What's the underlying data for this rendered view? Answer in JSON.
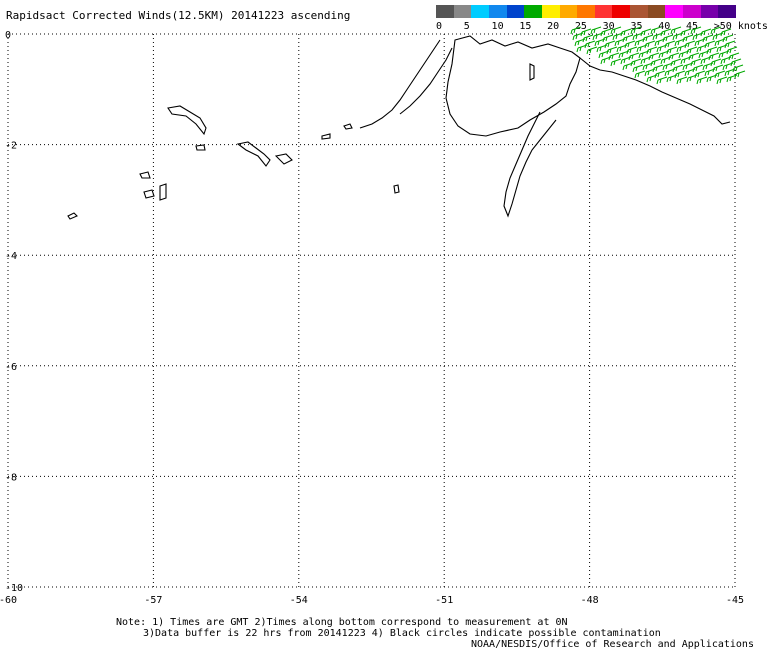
{
  "title": "Rapidsact Corrected Winds(12.5KM) 20141223 ascending",
  "legend": {
    "colors": [
      "#555555",
      "#888888",
      "#00ccff",
      "#1188ee",
      "#0044cc",
      "#00aa00",
      "#ffee00",
      "#ffaa00",
      "#ff7700",
      "#ff3333",
      "#ee0000",
      "#aa5533",
      "#8a4a22",
      "#ff00ff",
      "#cc00cc",
      "#7700aa",
      "#440088"
    ],
    "labels": [
      "0",
      "5",
      "10",
      "15",
      "20",
      "25",
      "30",
      "35",
      "40",
      "45",
      ">50 knots"
    ]
  },
  "chart_data": {
    "type": "map",
    "xlim": [
      -60,
      -45
    ],
    "ylim": [
      -10,
      0
    ],
    "x_ticks": [
      -60,
      -57,
      -54,
      -51,
      -48,
      -45
    ],
    "y_ticks": [
      0,
      -2,
      -4,
      -6,
      -8,
      -10
    ],
    "x_tick_labels": [
      "-60",
      "-57",
      "-54",
      "-51",
      "-48",
      "-45"
    ],
    "y_tick_labels": [
      "0",
      "-2",
      "-4",
      "-6",
      "-8",
      "-10"
    ],
    "grid": true,
    "wind_barb_color": "#00aa00",
    "coastline_color": "#000000"
  },
  "notes": {
    "line1": "Note: 1) Times are GMT 2)Times along bottom correspond to measurement at 0N",
    "line2": "3)Data buffer is 22 hrs from 20141223 4) Black circles indicate possible contamination",
    "line3": "NOAA/NESDIS/Office of Research and Applications"
  }
}
